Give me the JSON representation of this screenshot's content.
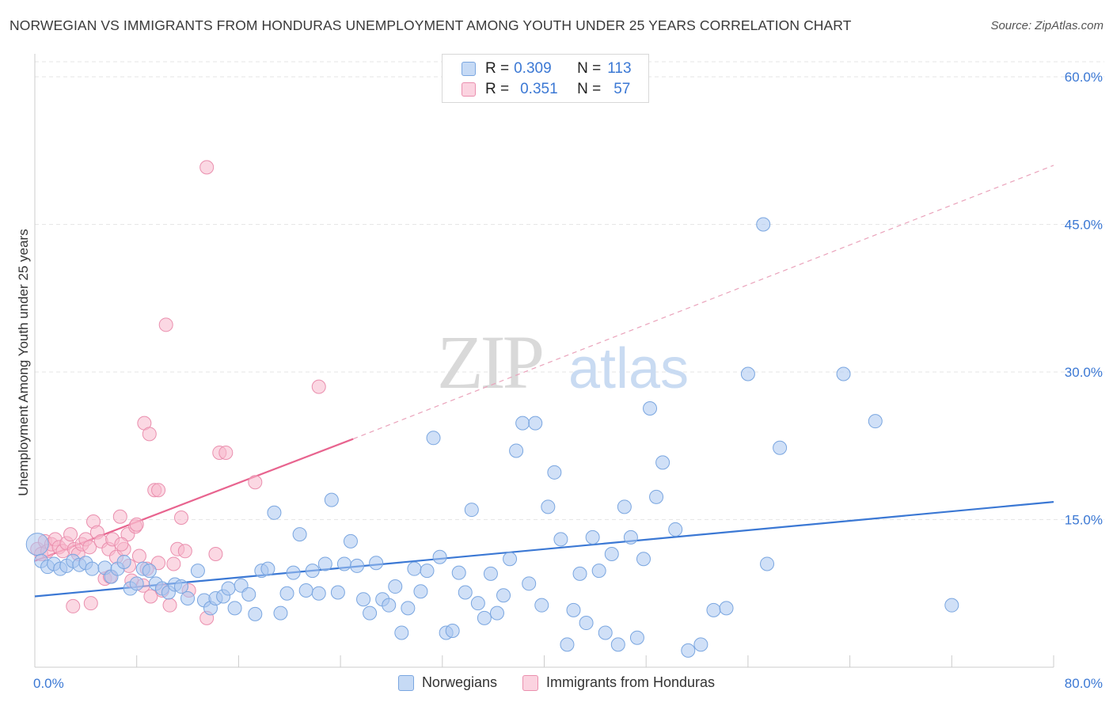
{
  "title": "NORWEGIAN VS IMMIGRANTS FROM HONDURAS UNEMPLOYMENT AMONG YOUTH UNDER 25 YEARS CORRELATION CHART",
  "source": "Source: ZipAtlas.com",
  "watermark": {
    "zip": "ZIP",
    "atlas": "atlas"
  },
  "legend_top": {
    "rows": [
      {
        "r_label": "R = ",
        "r_value": "0.309",
        "n_label": "N = ",
        "n_value": "113",
        "color": "#a9c7f0"
      },
      {
        "r_label": "R = ",
        "r_value": "0.351",
        "n_label": "N = ",
        "n_value": "57",
        "color": "#f7b8cc"
      }
    ]
  },
  "legend_bottom": [
    {
      "label": "Norwegians",
      "color": "#a9c7f0"
    },
    {
      "label": "Immigrants from Honduras",
      "color": "#f7b8cc"
    }
  ],
  "colors": {
    "blue_fill": "#a9c7f0",
    "blue_stroke": "#7aa6e0",
    "blue_line": "#3b78d4",
    "pink_fill": "#f7b8cc",
    "pink_stroke": "#ea8fae",
    "pink_line": "#e8648f",
    "grid": "#e6e6e6",
    "tick_text": "#3b78d4"
  },
  "chart_data": {
    "type": "scatter",
    "title": "NORWEGIAN VS IMMIGRANTS FROM HONDURAS UNEMPLOYMENT AMONG YOUTH UNDER 25 YEARS CORRELATION CHART",
    "xlabel": "",
    "ylabel": "Unemployment Among Youth under 25 years",
    "xlim": [
      0,
      80
    ],
    "ylim": [
      0,
      60
    ],
    "x_tick_labels": [
      "0.0%",
      "80.0%"
    ],
    "y_ticks": [
      15,
      30,
      45,
      60
    ],
    "y_tick_labels": [
      "15.0%",
      "30.0%",
      "45.0%",
      "60.0%"
    ],
    "grid": "horizontal dashed",
    "legend_position": "top-center",
    "series": [
      {
        "name": "Norwegians",
        "color": "#a9c7f0",
        "trend": {
          "x": [
            0,
            80
          ],
          "y": [
            7.2,
            16.8
          ],
          "style": "solid"
        },
        "points": [
          [
            0.2,
            12.5
          ],
          [
            0.5,
            10.8
          ],
          [
            1.0,
            10.2
          ],
          [
            1.5,
            10.5
          ],
          [
            2.0,
            10.0
          ],
          [
            2.5,
            10.3
          ],
          [
            3.0,
            10.8
          ],
          [
            3.5,
            10.4
          ],
          [
            4.0,
            10.6
          ],
          [
            4.5,
            10.0
          ],
          [
            5.5,
            10.1
          ],
          [
            6.0,
            9.2
          ],
          [
            6.5,
            10.0
          ],
          [
            7.0,
            10.7
          ],
          [
            7.5,
            8.0
          ],
          [
            8.0,
            8.5
          ],
          [
            8.5,
            10.0
          ],
          [
            9.0,
            9.8
          ],
          [
            9.5,
            8.5
          ],
          [
            10.0,
            8.0
          ],
          [
            10.5,
            7.6
          ],
          [
            11.0,
            8.4
          ],
          [
            11.5,
            8.2
          ],
          [
            12.0,
            7.0
          ],
          [
            12.8,
            9.8
          ],
          [
            13.3,
            6.8
          ],
          [
            13.8,
            6.0
          ],
          [
            14.2,
            7.0
          ],
          [
            14.8,
            7.2
          ],
          [
            15.2,
            8.0
          ],
          [
            15.7,
            6.0
          ],
          [
            16.2,
            8.3
          ],
          [
            16.8,
            7.4
          ],
          [
            17.3,
            5.4
          ],
          [
            17.8,
            9.8
          ],
          [
            18.3,
            10.0
          ],
          [
            18.8,
            15.7
          ],
          [
            19.3,
            5.5
          ],
          [
            19.8,
            7.5
          ],
          [
            20.3,
            9.6
          ],
          [
            20.8,
            13.5
          ],
          [
            21.3,
            7.8
          ],
          [
            21.8,
            9.8
          ],
          [
            22.3,
            7.5
          ],
          [
            22.8,
            10.5
          ],
          [
            23.3,
            17.0
          ],
          [
            23.8,
            7.6
          ],
          [
            24.3,
            10.5
          ],
          [
            24.8,
            12.8
          ],
          [
            25.3,
            10.3
          ],
          [
            25.8,
            6.9
          ],
          [
            26.3,
            5.5
          ],
          [
            26.8,
            10.6
          ],
          [
            27.3,
            6.9
          ],
          [
            27.8,
            6.3
          ],
          [
            28.3,
            8.2
          ],
          [
            28.8,
            3.5
          ],
          [
            29.3,
            6.0
          ],
          [
            29.8,
            10.0
          ],
          [
            30.3,
            7.7
          ],
          [
            30.8,
            9.8
          ],
          [
            31.3,
            23.3
          ],
          [
            31.8,
            11.2
          ],
          [
            32.3,
            3.5
          ],
          [
            32.8,
            3.7
          ],
          [
            33.3,
            9.6
          ],
          [
            33.8,
            7.6
          ],
          [
            34.3,
            16.0
          ],
          [
            34.8,
            6.5
          ],
          [
            35.3,
            5.0
          ],
          [
            35.8,
            9.5
          ],
          [
            36.3,
            5.5
          ],
          [
            36.8,
            7.3
          ],
          [
            37.3,
            11.0
          ],
          [
            37.8,
            22.0
          ],
          [
            38.3,
            24.8
          ],
          [
            38.8,
            8.5
          ],
          [
            39.3,
            24.8
          ],
          [
            39.8,
            6.3
          ],
          [
            40.3,
            16.3
          ],
          [
            40.8,
            19.8
          ],
          [
            41.3,
            13.0
          ],
          [
            41.8,
            2.3
          ],
          [
            42.3,
            5.8
          ],
          [
            42.8,
            9.5
          ],
          [
            43.3,
            4.5
          ],
          [
            43.8,
            13.2
          ],
          [
            44.3,
            9.8
          ],
          [
            44.8,
            3.5
          ],
          [
            45.3,
            11.5
          ],
          [
            45.8,
            2.3
          ],
          [
            46.3,
            16.3
          ],
          [
            46.8,
            13.2
          ],
          [
            47.3,
            3.0
          ],
          [
            47.8,
            11.0
          ],
          [
            48.3,
            26.3
          ],
          [
            48.8,
            17.3
          ],
          [
            49.3,
            20.8
          ],
          [
            50.3,
            14.0
          ],
          [
            51.3,
            1.7
          ],
          [
            52.3,
            2.3
          ],
          [
            53.3,
            5.8
          ],
          [
            54.3,
            6.0
          ],
          [
            56.0,
            29.8
          ],
          [
            57.2,
            45.0
          ],
          [
            57.5,
            10.5
          ],
          [
            58.5,
            22.3
          ],
          [
            63.5,
            29.8
          ],
          [
            66.0,
            25.0
          ],
          [
            72.0,
            6.3
          ]
        ]
      },
      {
        "name": "Immigrants from Honduras",
        "color": "#f7b8cc",
        "trend": {
          "x": [
            0,
            25
          ],
          "y": [
            10.8,
            23.2
          ],
          "style": "solid",
          "extension": {
            "x": [
              25,
              80
            ],
            "y": [
              23.2,
              51.0
            ],
            "style": "dashed"
          }
        },
        "points": [
          [
            0.2,
            12.0
          ],
          [
            0.5,
            11.5
          ],
          [
            0.8,
            12.8
          ],
          [
            1.0,
            11.8
          ],
          [
            1.3,
            12.5
          ],
          [
            1.6,
            13.0
          ],
          [
            1.9,
            12.2
          ],
          [
            2.2,
            11.8
          ],
          [
            2.5,
            12.6
          ],
          [
            2.8,
            13.5
          ],
          [
            3.1,
            12.0
          ],
          [
            3.4,
            11.5
          ],
          [
            3.7,
            12.5
          ],
          [
            4.0,
            13.0
          ],
          [
            4.3,
            12.2
          ],
          [
            4.6,
            14.8
          ],
          [
            4.9,
            13.7
          ],
          [
            5.2,
            12.8
          ],
          [
            5.5,
            9.0
          ],
          [
            5.8,
            12.0
          ],
          [
            6.1,
            13.0
          ],
          [
            6.4,
            11.2
          ],
          [
            6.7,
            15.3
          ],
          [
            7.0,
            12.0
          ],
          [
            7.3,
            13.5
          ],
          [
            7.6,
            8.8
          ],
          [
            7.9,
            14.3
          ],
          [
            8.2,
            11.3
          ],
          [
            8.5,
            8.3
          ],
          [
            8.8,
            10.0
          ],
          [
            9.1,
            7.2
          ],
          [
            9.4,
            18.0
          ],
          [
            9.7,
            10.6
          ],
          [
            10.0,
            7.8
          ],
          [
            10.3,
            34.8
          ],
          [
            10.6,
            6.3
          ],
          [
            10.9,
            10.5
          ],
          [
            11.2,
            12.0
          ],
          [
            11.5,
            15.2
          ],
          [
            11.8,
            11.8
          ],
          [
            12.1,
            7.8
          ],
          [
            13.5,
            5.0
          ],
          [
            13.5,
            50.8
          ],
          [
            14.2,
            11.5
          ],
          [
            14.5,
            21.8
          ],
          [
            15.0,
            21.8
          ],
          [
            17.3,
            18.8
          ],
          [
            22.3,
            28.5
          ],
          [
            8.6,
            24.8
          ],
          [
            9.0,
            23.7
          ],
          [
            9.7,
            18.0
          ],
          [
            8.0,
            14.5
          ],
          [
            6.8,
            12.5
          ],
          [
            7.4,
            10.3
          ],
          [
            5.9,
            9.2
          ],
          [
            4.4,
            6.5
          ],
          [
            3.0,
            6.2
          ]
        ]
      }
    ]
  }
}
